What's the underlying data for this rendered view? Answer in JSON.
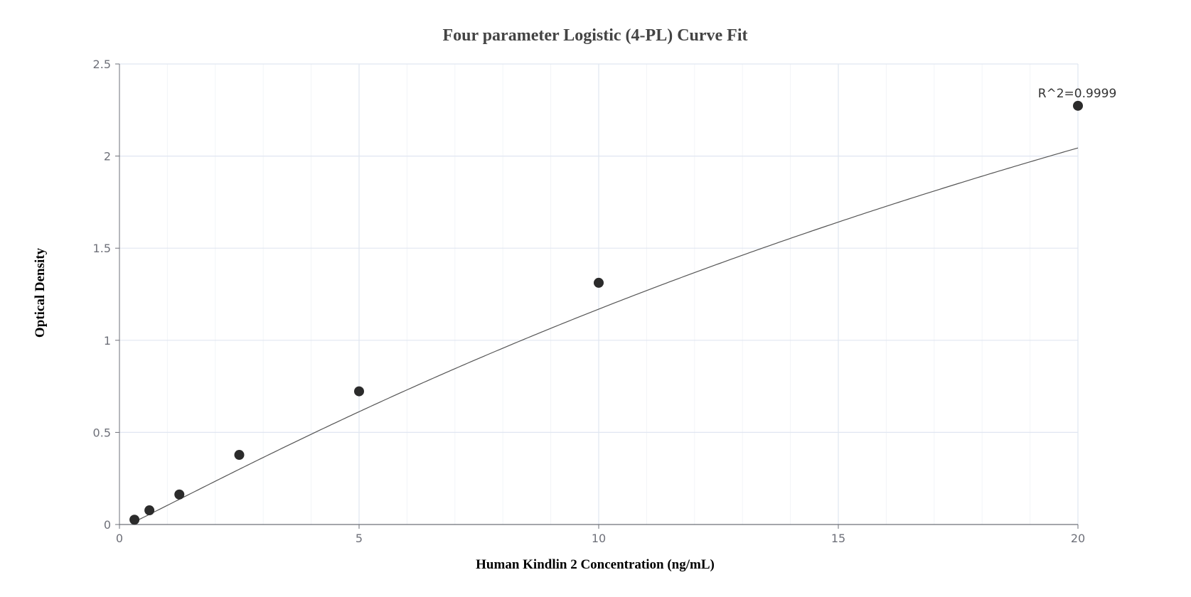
{
  "chart_data": {
    "type": "scatter",
    "title": "Four parameter Logistic (4-PL) Curve Fit",
    "xlabel": "Human Kindlin 2 Concentration (ng/mL)",
    "ylabel": "Optical Density",
    "xlim": [
      0,
      20
    ],
    "ylim": [
      0,
      2.5
    ],
    "x_ticks": [
      "0",
      "5",
      "10",
      "15",
      "20"
    ],
    "y_ticks": [
      "0",
      "0.5",
      "1",
      "1.5",
      "2",
      "2.5"
    ],
    "grid": true,
    "points": [
      {
        "x": 0.313,
        "y": 0.026
      },
      {
        "x": 0.625,
        "y": 0.077
      },
      {
        "x": 1.25,
        "y": 0.163
      },
      {
        "x": 2.5,
        "y": 0.378
      },
      {
        "x": 5,
        "y": 0.723
      },
      {
        "x": 10,
        "y": 1.312
      },
      {
        "x": 20,
        "y": 2.273
      }
    ],
    "fit_curve": {
      "model": "4PL",
      "A": -0.0233,
      "B": 1.05,
      "C": 42.0,
      "D": 6.55
    },
    "annotation": "R^2=0.9999",
    "colors": {
      "point": "#2b2b2b",
      "curve": "#555555",
      "grid_major": "#e0e6f1",
      "grid_minor": "#f2f4f8",
      "axis": "#6e7079"
    }
  }
}
